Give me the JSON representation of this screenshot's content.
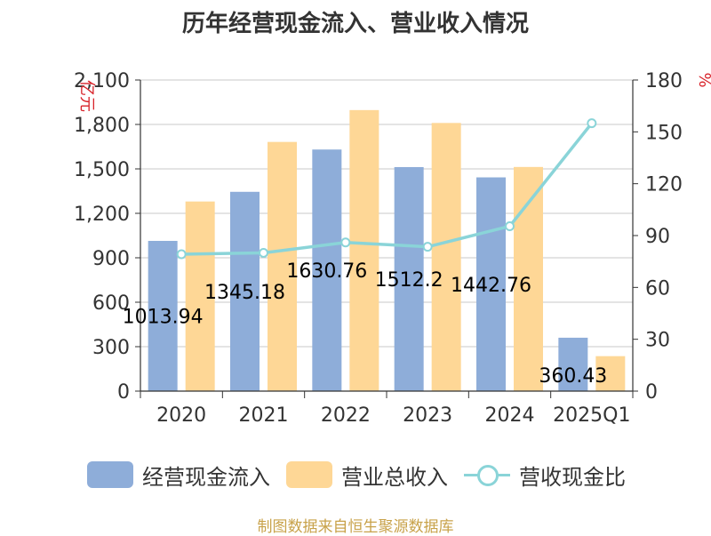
{
  "title": "历年经营现金流入、营业收入情况",
  "source": "制图数据来自恒生聚源数据库",
  "colors": {
    "cash_inflow": "#8eadd9",
    "revenue": "#fed796",
    "ratio": "#8ad4d8",
    "axis_unit": "#d8232a",
    "grid": "#c8c8c8",
    "text": "#333333"
  },
  "chart_data": {
    "type": "bar",
    "title": "历年经营现金流入、营业收入情况",
    "categories": [
      "2020",
      "2021",
      "2022",
      "2023",
      "2024",
      "2025Q1"
    ],
    "y_left": {
      "unit": "亿元",
      "range": [
        0,
        2100
      ],
      "ticks": [
        "0",
        "300",
        "600",
        "900",
        "1,200",
        "1,500",
        "1,800",
        "2,100"
      ]
    },
    "y_right": {
      "unit": "%",
      "range": [
        0,
        180
      ],
      "ticks": [
        "0",
        "30",
        "60",
        "90",
        "120",
        "150",
        "180"
      ]
    },
    "grid": true,
    "legend_placement": "bottom",
    "series": [
      {
        "name": "经营现金流入",
        "type": "bar",
        "axis": "left",
        "values": [
          1013.94,
          1345.18,
          1630.76,
          1512.2,
          1442.76,
          360.43
        ],
        "labels": [
          "1013.94",
          "1345.18",
          "1630.76",
          "1512.2",
          "1442.76",
          "360.43"
        ]
      },
      {
        "name": "营业总收入",
        "type": "bar",
        "axis": "left",
        "values": [
          1280,
          1682,
          1897,
          1810,
          1513,
          236
        ]
      },
      {
        "name": "营收现金比",
        "type": "line",
        "axis": "right",
        "values": [
          79.2,
          80.0,
          86.0,
          83.5,
          95.4,
          155
        ]
      }
    ]
  }
}
